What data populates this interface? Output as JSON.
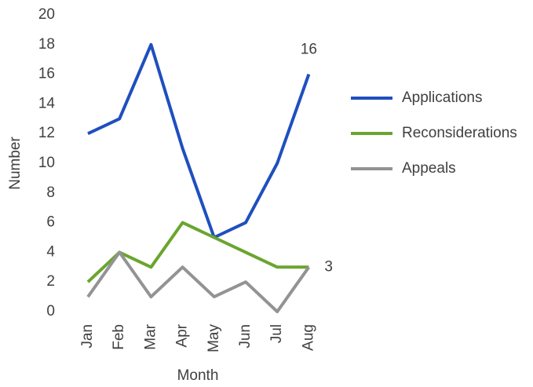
{
  "chart_data": {
    "type": "line",
    "x_label": "Month",
    "y_label": "Number",
    "categories": [
      "Jan",
      "Feb",
      "Mar",
      "Apr",
      "May",
      "Jun",
      "Jul",
      "Aug"
    ],
    "series": [
      {
        "name": "Applications",
        "color": "#1f4fbf",
        "values": [
          12,
          13,
          18,
          11,
          5,
          6,
          10,
          16
        ],
        "value_labels": [
          null,
          null,
          null,
          null,
          null,
          null,
          null,
          "16"
        ]
      },
      {
        "name": "Reconsiderations",
        "color": "#6aa52f",
        "values": [
          2,
          4,
          3,
          6,
          5,
          4,
          3,
          3
        ],
        "value_labels": [
          null,
          null,
          null,
          null,
          null,
          null,
          null,
          "3"
        ]
      },
      {
        "name": "Appeals",
        "color": "#939393",
        "values": [
          1,
          4,
          1,
          3,
          1,
          2,
          0,
          3
        ]
      }
    ],
    "ylim": [
      0,
      20
    ],
    "yticks": [
      0,
      2,
      4,
      6,
      8,
      10,
      12,
      14,
      16,
      18,
      20
    ],
    "grid": false,
    "legend": "right"
  }
}
